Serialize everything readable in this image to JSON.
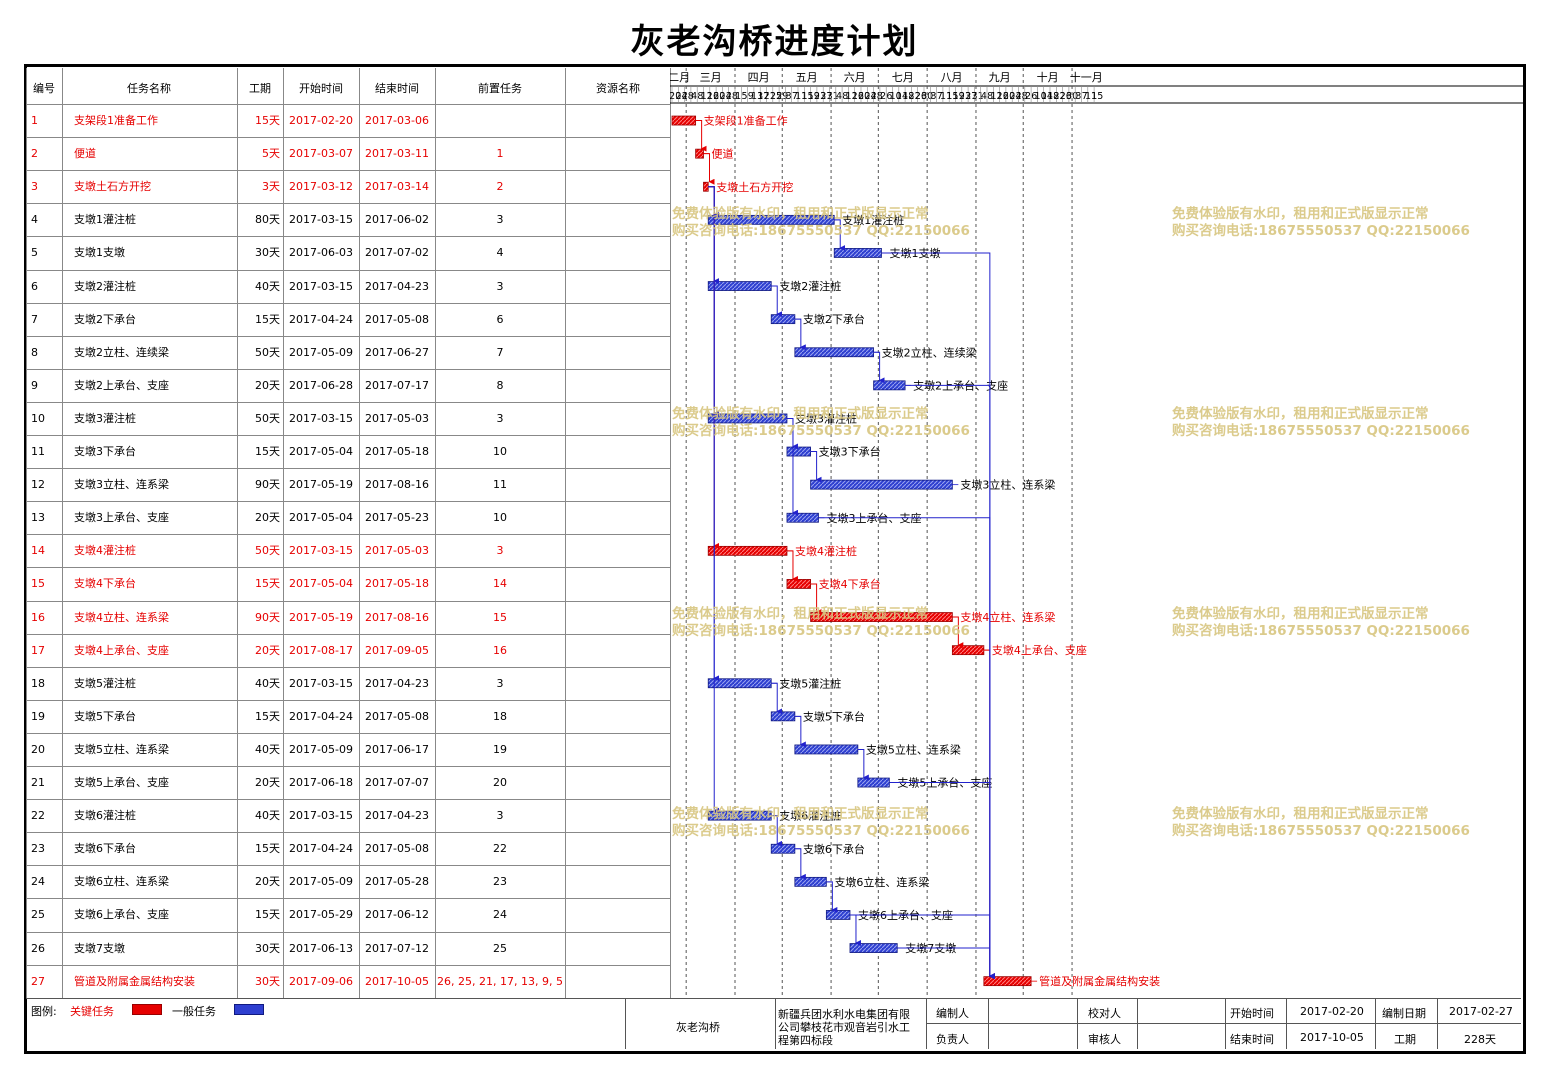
{
  "title": "灰老沟桥进度计划",
  "colors": {
    "critical": "#e60000",
    "normal": "#2222cc",
    "watermark": "#d8c680"
  },
  "table": {
    "headers": [
      "编号",
      "任务名称",
      "工期",
      "开始时间",
      "结束时间",
      "前置任务",
      "资源名称"
    ]
  },
  "chart_data": {
    "type": "gantt",
    "title": "灰老沟桥进度计划",
    "months": [
      "二月",
      "三月",
      "四月",
      "五月",
      "六月",
      "七月",
      "八月",
      "九月",
      "十月",
      "十一月"
    ],
    "day_ticks": [
      "20",
      "24",
      "28",
      "4",
      "8",
      "12",
      "16",
      "20",
      "24",
      "28",
      "1",
      "5",
      "9",
      "13",
      "17",
      "21",
      "25",
      "29",
      "3",
      "7",
      "11",
      "15",
      "19",
      "23",
      "27",
      "31",
      "4",
      "8",
      "12",
      "16",
      "20",
      "24",
      "28",
      "2",
      "6",
      "10",
      "14",
      "18",
      "22",
      "26",
      "30",
      "3",
      "7",
      "11",
      "15",
      "19",
      "23",
      "27",
      "31",
      "4",
      "8",
      "12",
      "16",
      "20",
      "24",
      "28",
      "2",
      "6",
      "10",
      "14",
      "18",
      "22",
      "26",
      "30",
      "3",
      "7",
      "11",
      "15"
    ],
    "tasks": [
      {
        "id": "1",
        "name": "支架段1准备工作",
        "duration": "15天",
        "start": "2017-02-20",
        "end": "2017-03-06",
        "pred": "",
        "critical": true
      },
      {
        "id": "2",
        "name": "便道",
        "duration": "5天",
        "start": "2017-03-07",
        "end": "2017-03-11",
        "pred": "1",
        "critical": true
      },
      {
        "id": "3",
        "name": "支墩土石方开挖",
        "duration": "3天",
        "start": "2017-03-12",
        "end": "2017-03-14",
        "pred": "2",
        "critical": true
      },
      {
        "id": "4",
        "name": "支墩1灌注桩",
        "duration": "80天",
        "start": "2017-03-15",
        "end": "2017-06-02",
        "pred": "3",
        "critical": false
      },
      {
        "id": "5",
        "name": "支墩1支墩",
        "duration": "30天",
        "start": "2017-06-03",
        "end": "2017-07-02",
        "pred": "4",
        "critical": false
      },
      {
        "id": "6",
        "name": "支墩2灌注桩",
        "duration": "40天",
        "start": "2017-03-15",
        "end": "2017-04-23",
        "pred": "3",
        "critical": false
      },
      {
        "id": "7",
        "name": "支墩2下承台",
        "duration": "15天",
        "start": "2017-04-24",
        "end": "2017-05-08",
        "pred": "6",
        "critical": false
      },
      {
        "id": "8",
        "name": "支墩2立柱、连续梁",
        "duration": "50天",
        "start": "2017-05-09",
        "end": "2017-06-27",
        "pred": "7",
        "critical": false
      },
      {
        "id": "9",
        "name": "支墩2上承台、支座",
        "duration": "20天",
        "start": "2017-06-28",
        "end": "2017-07-17",
        "pred": "8",
        "critical": false
      },
      {
        "id": "10",
        "name": "支墩3灌注桩",
        "duration": "50天",
        "start": "2017-03-15",
        "end": "2017-05-03",
        "pred": "3",
        "critical": false
      },
      {
        "id": "11",
        "name": "支墩3下承台",
        "duration": "15天",
        "start": "2017-05-04",
        "end": "2017-05-18",
        "pred": "10",
        "critical": false
      },
      {
        "id": "12",
        "name": "支墩3立柱、连系梁",
        "duration": "90天",
        "start": "2017-05-19",
        "end": "2017-08-16",
        "pred": "11",
        "critical": false
      },
      {
        "id": "13",
        "name": "支墩3上承台、支座",
        "duration": "20天",
        "start": "2017-05-04",
        "end": "2017-05-23",
        "pred": "10",
        "critical": false
      },
      {
        "id": "14",
        "name": "支墩4灌注桩",
        "duration": "50天",
        "start": "2017-03-15",
        "end": "2017-05-03",
        "pred": "3",
        "critical": true
      },
      {
        "id": "15",
        "name": "支墩4下承台",
        "duration": "15天",
        "start": "2017-05-04",
        "end": "2017-05-18",
        "pred": "14",
        "critical": true
      },
      {
        "id": "16",
        "name": "支墩4立柱、连系梁",
        "duration": "90天",
        "start": "2017-05-19",
        "end": "2017-08-16",
        "pred": "15",
        "critical": true
      },
      {
        "id": "17",
        "name": "支墩4上承台、支座",
        "duration": "20天",
        "start": "2017-08-17",
        "end": "2017-09-05",
        "pred": "16",
        "critical": true
      },
      {
        "id": "18",
        "name": "支墩5灌注桩",
        "duration": "40天",
        "start": "2017-03-15",
        "end": "2017-04-23",
        "pred": "3",
        "critical": false
      },
      {
        "id": "19",
        "name": "支墩5下承台",
        "duration": "15天",
        "start": "2017-04-24",
        "end": "2017-05-08",
        "pred": "18",
        "critical": false
      },
      {
        "id": "20",
        "name": "支墩5立柱、连系梁",
        "duration": "40天",
        "start": "2017-05-09",
        "end": "2017-06-17",
        "pred": "19",
        "critical": false
      },
      {
        "id": "21",
        "name": "支墩5上承台、支座",
        "duration": "20天",
        "start": "2017-06-18",
        "end": "2017-07-07",
        "pred": "20",
        "critical": false
      },
      {
        "id": "22",
        "name": "支墩6灌注桩",
        "duration": "40天",
        "start": "2017-03-15",
        "end": "2017-04-23",
        "pred": "3",
        "critical": false
      },
      {
        "id": "23",
        "name": "支墩6下承台",
        "duration": "15天",
        "start": "2017-04-24",
        "end": "2017-05-08",
        "pred": "22",
        "critical": false
      },
      {
        "id": "24",
        "name": "支墩6立柱、连系梁",
        "duration": "20天",
        "start": "2017-05-09",
        "end": "2017-05-28",
        "pred": "23",
        "critical": false
      },
      {
        "id": "25",
        "name": "支墩6上承台、支座",
        "duration": "15天",
        "start": "2017-05-29",
        "end": "2017-06-12",
        "pred": "24",
        "critical": false
      },
      {
        "id": "26",
        "name": "支墩7支墩",
        "duration": "30天",
        "start": "2017-06-13",
        "end": "2017-07-12",
        "pred": "25",
        "critical": false
      },
      {
        "id": "27",
        "name": "管道及附属金属结构安装",
        "duration": "30天",
        "start": "2017-09-06",
        "end": "2017-10-05",
        "pred": "26, 25, 21, 17, 13, 9, 5",
        "critical": true
      }
    ],
    "grid": true
  },
  "watermark": {
    "line1": "免费体验版有水印，租用和正式版显示正常",
    "line2": "购买咨询电话:18675550537 QQ:22150066"
  },
  "footer": {
    "legend_label": "图例:",
    "legend_critical": "关键任务",
    "legend_normal": "一般任务",
    "project": "灰老沟桥",
    "company": [
      "新疆兵团水利水电集团有限",
      "公司攀枝花市观音岩引水工",
      "程第四标段"
    ],
    "compiler_label": "编制人",
    "checker_label": "校对人",
    "leader_label": "负责人",
    "reviewer_label": "审核人",
    "start_label": "开始时间",
    "start_value": "2017-02-20",
    "compile_date_label": "编制日期",
    "compile_date_value": "2017-02-27",
    "end_label": "结束时间",
    "end_value": "2017-10-05",
    "duration_label": "工期",
    "duration_value": "228天"
  }
}
